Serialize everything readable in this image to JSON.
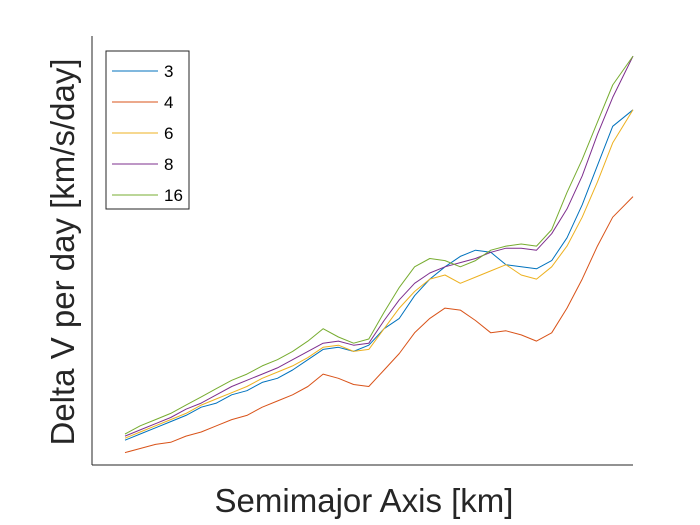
{
  "chart_data": {
    "type": "line",
    "title": "",
    "xlabel": "Semimajor Axis [km]",
    "ylabel": "Delta V per day [km/s/day]",
    "xlim": [
      0,
      100
    ],
    "ylim": [
      0,
      100
    ],
    "grid": false,
    "tick_labels_shown": false,
    "legend_position": "top-left",
    "x": [
      0,
      3,
      6,
      9,
      12,
      15,
      18,
      21,
      24,
      27,
      30,
      33,
      36,
      39,
      42,
      45,
      48,
      51,
      54,
      57,
      60,
      63,
      66,
      69,
      72,
      75,
      78,
      81,
      84,
      87,
      90,
      93,
      96,
      100
    ],
    "series": [
      {
        "name": "3",
        "color": "#0072BD",
        "values": [
          6,
          7.5,
          9,
          10.5,
          12,
          14,
          15,
          17,
          18,
          20,
          21,
          23,
          25.5,
          28,
          28.5,
          27.5,
          29,
          33,
          35.5,
          41,
          45,
          48,
          50.5,
          52,
          51.5,
          48.5,
          48,
          47.5,
          49.5,
          55,
          63,
          72.5,
          82,
          86
        ]
      },
      {
        "name": "4",
        "color": "#D95319",
        "values": [
          3,
          4,
          5,
          5.5,
          7,
          8,
          9.5,
          11,
          12,
          14,
          15.5,
          17,
          19,
          22,
          21,
          19.5,
          19,
          23,
          27,
          32,
          35.5,
          38,
          37.5,
          35,
          32,
          32.5,
          31.5,
          30,
          32,
          38,
          45,
          53,
          60,
          65
        ]
      },
      {
        "name": "6",
        "color": "#EDB120",
        "values": [
          6.5,
          8,
          9.5,
          11,
          12.5,
          14.5,
          16,
          17.5,
          19,
          21,
          22.5,
          24,
          26,
          28.5,
          29,
          27.5,
          28,
          33,
          38,
          42,
          45,
          46,
          44,
          45.5,
          47,
          48.5,
          46,
          45,
          48,
          53,
          60,
          68.5,
          78,
          86
        ]
      },
      {
        "name": "8",
        "color": "#7E2F8E",
        "values": [
          7,
          8.5,
          10,
          11.5,
          13.5,
          15,
          17,
          19,
          20.5,
          22,
          23.5,
          25.5,
          27.5,
          29.5,
          30,
          29,
          29.5,
          35,
          40,
          44,
          46.5,
          48,
          49,
          50,
          51.5,
          52.5,
          52.5,
          52,
          56,
          62,
          70,
          80,
          89,
          99
        ]
      },
      {
        "name": "16",
        "color": "#77AC30",
        "values": [
          7.5,
          9.5,
          11,
          12.5,
          14.5,
          16.5,
          18.5,
          20.5,
          22,
          24,
          25.5,
          27.5,
          30,
          33,
          31,
          29.5,
          30.5,
          37,
          43,
          48,
          50,
          49.5,
          48,
          49.5,
          52,
          53,
          53.5,
          53,
          57,
          66,
          74,
          83,
          92,
          99
        ]
      }
    ]
  }
}
